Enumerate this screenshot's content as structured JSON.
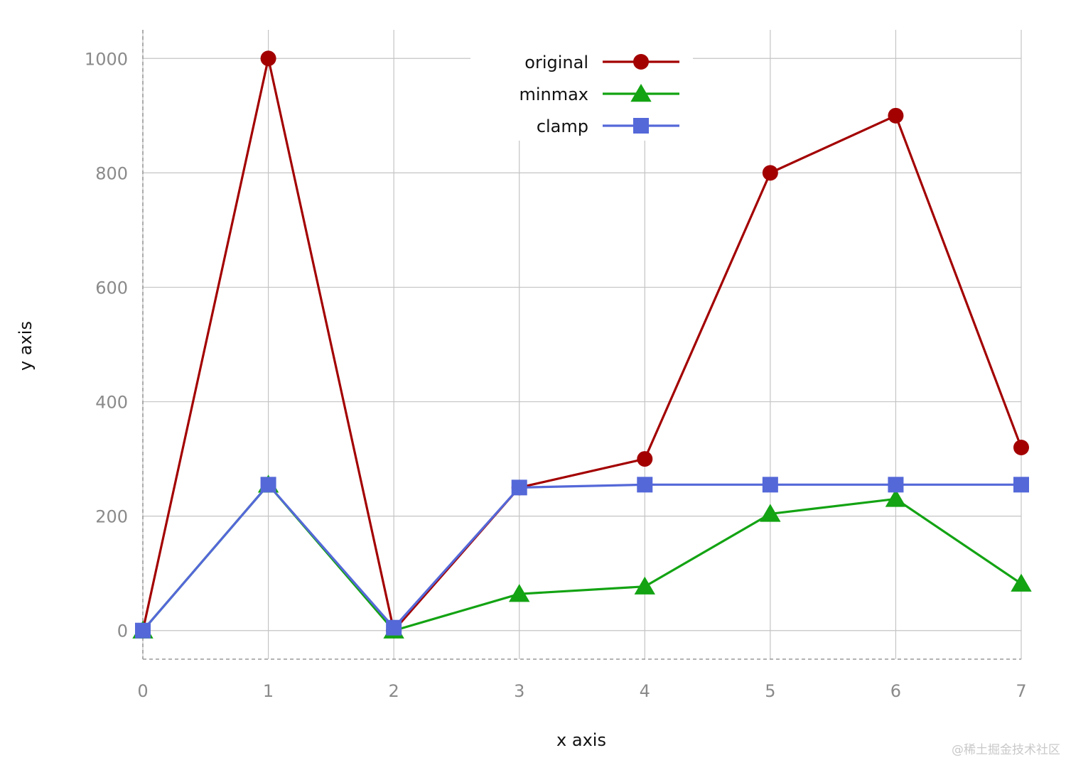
{
  "chart_data": {
    "type": "line",
    "title": "",
    "xlabel": "x axis",
    "ylabel": "y axis",
    "x": [
      0,
      1,
      2,
      3,
      4,
      5,
      6,
      7
    ],
    "xlim": [
      0,
      7
    ],
    "ylim": [
      -50,
      1050
    ],
    "xticks": [
      "0",
      "1",
      "2",
      "3",
      "4",
      "5",
      "6",
      "7"
    ],
    "yticks": [
      "0",
      "200",
      "400",
      "600",
      "800",
      "1000"
    ],
    "grid": true,
    "legend_position": "top-center",
    "series": [
      {
        "name": "original",
        "values": [
          0,
          1000,
          0,
          250,
          300,
          800,
          900,
          320
        ],
        "color": "#a30000",
        "marker": "circle"
      },
      {
        "name": "minmax",
        "values": [
          0,
          255,
          0,
          64,
          77,
          204,
          230,
          82
        ],
        "color": "#13a313",
        "marker": "triangle"
      },
      {
        "name": "clamp",
        "values": [
          0,
          255,
          5,
          250,
          255,
          255,
          255,
          255
        ],
        "color": "#5468d8",
        "marker": "square"
      }
    ]
  },
  "watermark": "@稀土掘金技术社区"
}
